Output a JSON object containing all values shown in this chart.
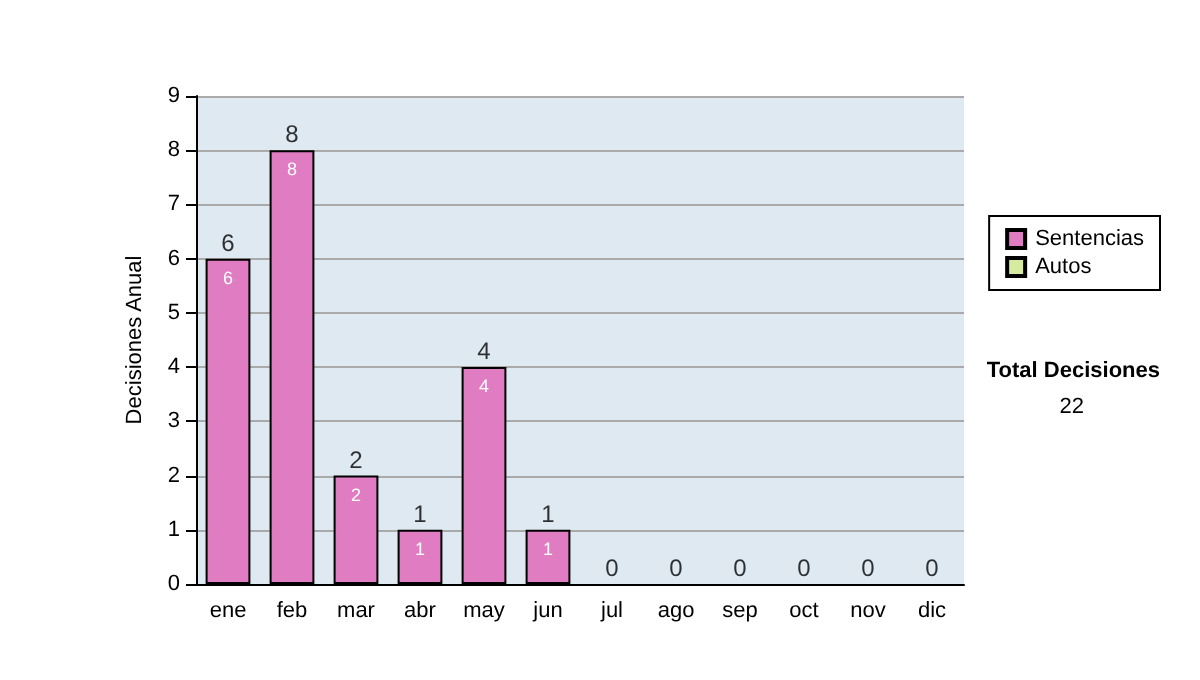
{
  "chart_data": {
    "type": "bar",
    "stacked": true,
    "ylabel": "Decisiones Anual",
    "categories": [
      "ene",
      "feb",
      "mar",
      "abr",
      "may",
      "jun",
      "jul",
      "ago",
      "sep",
      "oct",
      "nov",
      "dic"
    ],
    "series": [
      {
        "name": "Sentencias",
        "color": "#df7cc2",
        "values": [
          6,
          8,
          2,
          1,
          4,
          1,
          0,
          0,
          0,
          0,
          0,
          0
        ],
        "value_labels": [
          "6",
          "8",
          "2",
          "1",
          "4",
          "1",
          null,
          null,
          null,
          null,
          null,
          null
        ]
      },
      {
        "name": "Autos",
        "color": "#d6eaa0",
        "values": [
          0,
          0,
          0,
          0,
          0,
          0,
          0,
          0,
          0,
          0,
          0,
          0
        ]
      }
    ],
    "totals": [
      "6",
      "8",
      "2",
      "1",
      "4",
      "1",
      "0",
      "0",
      "0",
      "0",
      "0",
      "0"
    ],
    "ylim": [
      0,
      9
    ],
    "yticks": [
      0,
      1,
      2,
      3,
      4,
      5,
      6,
      7,
      8,
      9
    ],
    "grid": "y",
    "legend": "right",
    "annotations": [
      "Total Decisiones",
      "22"
    ]
  }
}
